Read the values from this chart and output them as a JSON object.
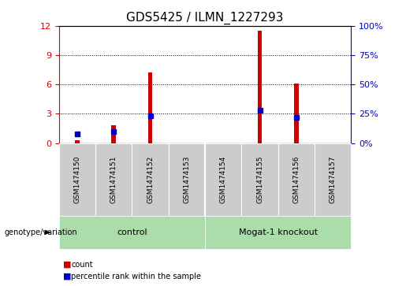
{
  "title": "GDS5425 / ILMN_1227293",
  "samples": [
    "GSM1474150",
    "GSM1474151",
    "GSM1474152",
    "GSM1474153",
    "GSM1474154",
    "GSM1474155",
    "GSM1474156",
    "GSM1474157"
  ],
  "counts": [
    0.25,
    1.8,
    7.2,
    0,
    0,
    11.5,
    6.1,
    0
  ],
  "percentile_ranks": [
    8,
    10,
    23,
    0,
    0,
    28,
    22,
    0
  ],
  "left_ylim": [
    0,
    12
  ],
  "right_ylim": [
    0,
    100
  ],
  "left_yticks": [
    0,
    3,
    6,
    9,
    12
  ],
  "right_yticks": [
    0,
    25,
    50,
    75,
    100
  ],
  "bar_color": "#cc0000",
  "dot_color": "#0000cc",
  "bar_width": 0.12,
  "group_control_label": "control",
  "group_ko_label": "Mogat-1 knockout",
  "group_color": "#aaddaa",
  "group_label_prefix": "genotype/variation",
  "legend_count_label": "count",
  "legend_pct_label": "percentile rank within the sample",
  "legend_color_count": "#cc0000",
  "legend_color_pct": "#0000cc",
  "title_fontsize": 11,
  "tick_fontsize": 8,
  "sample_fontsize": 6.5,
  "axis_color_left": "#cc0000",
  "axis_color_right": "#0000cc",
  "bg_color": "#ffffff",
  "plot_bg": "#ffffff",
  "gray_box": "#cccccc",
  "grid_color": "#000000",
  "grid_style": ":",
  "grid_lw": 0.7
}
